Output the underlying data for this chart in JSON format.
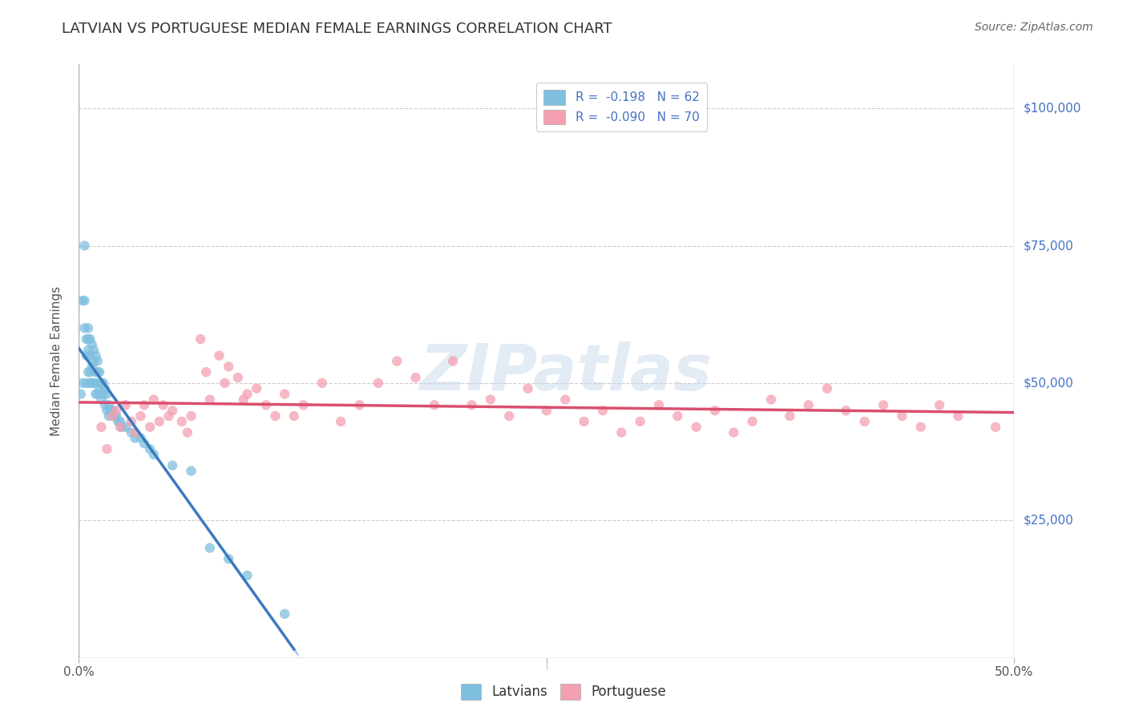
{
  "title": "LATVIAN VS PORTUGUESE MEDIAN FEMALE EARNINGS CORRELATION CHART",
  "source": "Source: ZipAtlas.com",
  "ylabel": "Median Female Earnings",
  "xlim": [
    0.0,
    0.5
  ],
  "ylim": [
    0,
    108000
  ],
  "yticks": [
    0,
    25000,
    50000,
    75000,
    100000
  ],
  "ytick_labels": [
    "",
    "$25,000",
    "$50,000",
    "$75,000",
    "$100,000"
  ],
  "xticks": [
    0.0,
    0.25,
    0.5
  ],
  "xtick_labels": [
    "0.0%",
    "",
    "50.0%"
  ],
  "latvian_color": "#7fbfdf",
  "portuguese_color": "#f4a0b0",
  "latvian_R": -0.198,
  "latvian_N": 62,
  "portuguese_R": -0.09,
  "portuguese_N": 70,
  "legend_latvians": "Latvians",
  "legend_portuguese": "Portuguese",
  "trend_latvian_color": "#3a7abf",
  "trend_portuguese_color": "#d94f6e",
  "trend_dashed_color": "#a8c8e8",
  "watermark": "ZIPatlas",
  "latvian_x": [
    0.001,
    0.002,
    0.002,
    0.003,
    0.003,
    0.003,
    0.004,
    0.004,
    0.004,
    0.005,
    0.005,
    0.005,
    0.005,
    0.006,
    0.006,
    0.006,
    0.006,
    0.007,
    0.007,
    0.007,
    0.008,
    0.008,
    0.008,
    0.009,
    0.009,
    0.009,
    0.01,
    0.01,
    0.01,
    0.01,
    0.011,
    0.011,
    0.012,
    0.012,
    0.013,
    0.013,
    0.014,
    0.014,
    0.015,
    0.015,
    0.016,
    0.016,
    0.017,
    0.018,
    0.019,
    0.02,
    0.021,
    0.022,
    0.023,
    0.025,
    0.028,
    0.03,
    0.033,
    0.035,
    0.038,
    0.04,
    0.05,
    0.06,
    0.07,
    0.08,
    0.09,
    0.11
  ],
  "latvian_y": [
    48000,
    50000,
    65000,
    75000,
    65000,
    60000,
    58000,
    55000,
    50000,
    60000,
    58000,
    56000,
    52000,
    58000,
    55000,
    52000,
    50000,
    57000,
    53000,
    50000,
    56000,
    54000,
    50000,
    55000,
    52000,
    48000,
    54000,
    52000,
    50000,
    48000,
    52000,
    49000,
    50000,
    47000,
    50000,
    48000,
    49000,
    46000,
    48000,
    45000,
    46000,
    44000,
    45000,
    45000,
    44000,
    44000,
    43000,
    43000,
    42000,
    42000,
    41000,
    40000,
    40000,
    39000,
    38000,
    37000,
    35000,
    34000,
    20000,
    18000,
    15000,
    8000
  ],
  "portuguese_x": [
    0.012,
    0.015,
    0.018,
    0.02,
    0.022,
    0.025,
    0.028,
    0.03,
    0.033,
    0.035,
    0.038,
    0.04,
    0.043,
    0.045,
    0.048,
    0.05,
    0.055,
    0.058,
    0.06,
    0.065,
    0.068,
    0.07,
    0.075,
    0.078,
    0.08,
    0.085,
    0.088,
    0.09,
    0.095,
    0.1,
    0.105,
    0.11,
    0.115,
    0.12,
    0.13,
    0.14,
    0.15,
    0.16,
    0.17,
    0.18,
    0.19,
    0.2,
    0.21,
    0.22,
    0.23,
    0.24,
    0.25,
    0.26,
    0.27,
    0.28,
    0.29,
    0.3,
    0.31,
    0.32,
    0.33,
    0.34,
    0.35,
    0.36,
    0.37,
    0.38,
    0.39,
    0.4,
    0.41,
    0.42,
    0.43,
    0.44,
    0.45,
    0.46,
    0.47,
    0.49
  ],
  "portuguese_y": [
    42000,
    38000,
    44000,
    45000,
    42000,
    46000,
    43000,
    41000,
    44000,
    46000,
    42000,
    47000,
    43000,
    46000,
    44000,
    45000,
    43000,
    41000,
    44000,
    58000,
    52000,
    47000,
    55000,
    50000,
    53000,
    51000,
    47000,
    48000,
    49000,
    46000,
    44000,
    48000,
    44000,
    46000,
    50000,
    43000,
    46000,
    50000,
    54000,
    51000,
    46000,
    54000,
    46000,
    47000,
    44000,
    49000,
    45000,
    47000,
    43000,
    45000,
    41000,
    43000,
    46000,
    44000,
    42000,
    45000,
    41000,
    43000,
    47000,
    44000,
    46000,
    49000,
    45000,
    43000,
    46000,
    44000,
    42000,
    46000,
    44000,
    42000
  ],
  "background_color": "#ffffff",
  "grid_color": "#cccccc",
  "title_color": "#333333",
  "tick_label_color_y": "#4472c4",
  "tick_label_color_x": "#555555",
  "ylabel_color": "#555555",
  "title_fontsize": 13,
  "source_fontsize": 10,
  "legend_fontsize": 11,
  "ytick_fontsize": 11,
  "xtick_fontsize": 11
}
